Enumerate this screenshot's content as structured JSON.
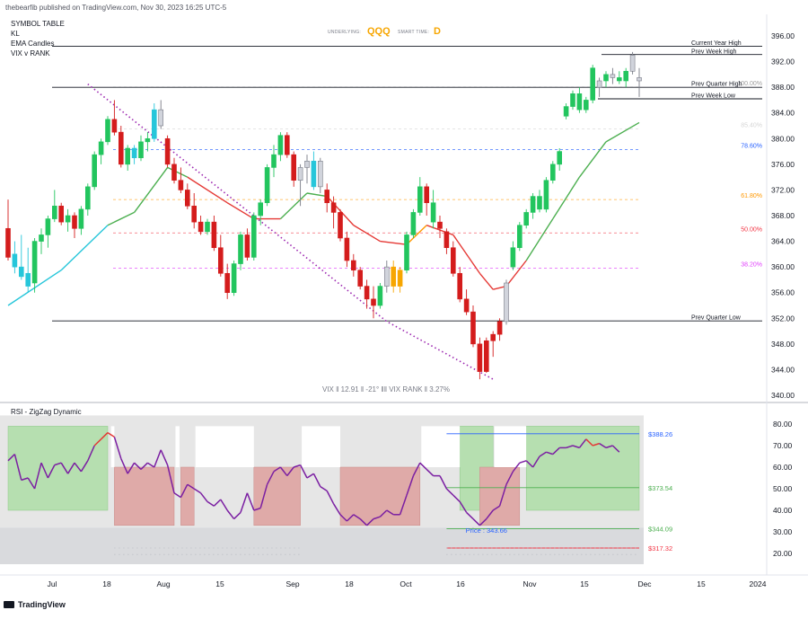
{
  "header": {
    "publisher": "thebearfib published on TradingView.com, Nov 30, 2023 16:25 UTC-5"
  },
  "legend": [
    "SYMBOL TABLE",
    "KL",
    "EMA Candles",
    "VIX v RANK"
  ],
  "center_info": {
    "underlying_label": "UNDERLYING:",
    "underlying_value": "QQQ",
    "smart_label": "SMART TIME:",
    "smart_value": "D"
  },
  "vix_readout": "VIX ‖ 12.91 ‖ -21°    ‖‖    VIX RANK ‖ 3.27%",
  "rsi_title": "RSI - ZigZag Dynamic",
  "brand": "TradingView",
  "colors": {
    "bull": "#22c55e",
    "bear": "#d41c1c",
    "neutral": "#d1d4dc",
    "cyan": "#26c6da",
    "orange": "#f7a600",
    "ema_red": "#e53935",
    "ema_green": "#4caf50",
    "zigzag": "#9c27b0",
    "rsi_line": "#7b1fa2",
    "rsi_ob": "#e53935"
  },
  "chart_data": [
    {
      "type": "candlestick",
      "y_ticks": [
        "396.00",
        "392.00",
        "388.00",
        "384.00",
        "380.00",
        "376.00",
        "372.00",
        "368.00",
        "364.00",
        "360.00",
        "356.00",
        "352.00",
        "348.00",
        "344.00",
        "340.00"
      ],
      "ylim": [
        340,
        397
      ],
      "x_labels": [
        "Jul",
        "18",
        "Aug",
        "15",
        "Sep",
        "18",
        "Oct",
        "16",
        "Nov",
        "15",
        "Dec",
        "15",
        "2024"
      ],
      "level_lines": [
        {
          "label": "Current Year High",
          "value": 394.4
        },
        {
          "label": "Prev Week High",
          "value": 393.1
        },
        {
          "label": "Prev Quarter High",
          "value": 388.0
        },
        {
          "label": "Prev Week Low",
          "value": 386.2
        },
        {
          "label": "Prev Quarter Low",
          "value": 351.6
        }
      ],
      "fib_levels": [
        {
          "label": "100.00%",
          "value": 388.0,
          "color": "#9e9e9e"
        },
        {
          "label": "85.40%",
          "value": 381.5,
          "color": "#d6d6d6"
        },
        {
          "label": "78.60%",
          "value": 378.3,
          "color": "#2962ff"
        },
        {
          "label": "61.80%",
          "value": 370.5,
          "color": "#ff9800"
        },
        {
          "label": "50.00%",
          "value": 365.3,
          "color": "#f23645"
        },
        {
          "label": "38.20%",
          "value": 359.8,
          "color": "#e040fb"
        }
      ],
      "candles": [
        [
          366.0,
          370.5,
          361.0,
          361.5,
          "bear"
        ],
        [
          362.0,
          364.0,
          359.0,
          360.0,
          "cyan"
        ],
        [
          360.0,
          365.0,
          358.0,
          358.5,
          "cyan"
        ],
        [
          359.0,
          363.0,
          356.0,
          357.0,
          "cyan"
        ],
        [
          357.5,
          364.5,
          356.0,
          364.0,
          "bull"
        ],
        [
          364.0,
          366.0,
          362.0,
          365.0,
          "bull"
        ],
        [
          365.0,
          368.0,
          363.0,
          367.5,
          "bull"
        ],
        [
          367.5,
          372.0,
          367.0,
          369.5,
          "bull"
        ],
        [
          369.5,
          370.0,
          366.5,
          367.0,
          "bear"
        ],
        [
          367.0,
          369.0,
          365.5,
          368.0,
          "bull"
        ],
        [
          368.0,
          368.5,
          364.5,
          366.0,
          "bear"
        ],
        [
          366.0,
          369.5,
          365.0,
          369.0,
          "bull"
        ],
        [
          369.0,
          373.0,
          368.0,
          372.5,
          "bull"
        ],
        [
          372.5,
          378.0,
          372.0,
          377.5,
          "bull"
        ],
        [
          377.5,
          380.0,
          376.0,
          379.5,
          "bull"
        ],
        [
          379.5,
          383.5,
          379.0,
          383.0,
          "bull"
        ],
        [
          383.0,
          386.0,
          380.5,
          381.0,
          "bear"
        ],
        [
          381.0,
          382.0,
          375.5,
          376.0,
          "bear"
        ],
        [
          376.0,
          379.0,
          375.0,
          378.5,
          "bull"
        ],
        [
          378.5,
          379.0,
          376.0,
          377.0,
          "cyan"
        ],
        [
          377.0,
          380.5,
          376.5,
          379.5,
          "bull"
        ],
        [
          379.5,
          381.0,
          378.0,
          380.0,
          "bull"
        ],
        [
          380.0,
          385.5,
          379.5,
          384.5,
          "cyan"
        ],
        [
          384.5,
          386.0,
          381.5,
          382.0,
          "neutral"
        ],
        [
          380.0,
          380.5,
          375.5,
          376.0,
          "bear"
        ],
        [
          376.0,
          377.0,
          373.0,
          373.5,
          "bear"
        ],
        [
          373.5,
          375.5,
          371.5,
          372.0,
          "bear"
        ],
        [
          372.0,
          373.0,
          369.0,
          369.5,
          "bear"
        ],
        [
          369.5,
          371.5,
          366.0,
          367.0,
          "bear"
        ],
        [
          367.0,
          368.0,
          365.0,
          365.5,
          "bear"
        ],
        [
          365.5,
          367.5,
          365.0,
          367.0,
          "bull"
        ],
        [
          367.0,
          368.0,
          362.5,
          363.0,
          "bear"
        ],
        [
          363.0,
          365.0,
          358.5,
          359.0,
          "bear"
        ],
        [
          359.0,
          360.5,
          355.0,
          356.0,
          "bear"
        ],
        [
          356.0,
          361.0,
          355.5,
          360.5,
          "bull"
        ],
        [
          360.5,
          365.5,
          359.5,
          365.0,
          "bull"
        ],
        [
          365.0,
          366.0,
          361.0,
          361.5,
          "bear"
        ],
        [
          361.5,
          368.5,
          361.0,
          368.0,
          "bull"
        ],
        [
          368.0,
          370.5,
          366.5,
          370.0,
          "bull"
        ],
        [
          370.0,
          376.0,
          369.5,
          375.5,
          "bull"
        ],
        [
          375.5,
          379.0,
          374.0,
          377.5,
          "bull"
        ],
        [
          377.5,
          381.0,
          376.5,
          380.5,
          "bull"
        ],
        [
          380.5,
          381.0,
          377.0,
          377.5,
          "bear"
        ],
        [
          377.5,
          378.0,
          372.5,
          373.5,
          "bear"
        ],
        [
          373.5,
          376.0,
          369.5,
          375.5,
          "neutral"
        ],
        [
          375.5,
          377.5,
          373.0,
          376.5,
          "neutral"
        ],
        [
          376.5,
          378.0,
          372.0,
          372.5,
          "cyan"
        ],
        [
          372.5,
          377.0,
          371.5,
          376.5,
          "neutral"
        ],
        [
          372.0,
          373.0,
          368.5,
          370.0,
          "bear"
        ],
        [
          370.0,
          371.0,
          366.0,
          368.5,
          "bear"
        ],
        [
          368.5,
          369.0,
          364.0,
          364.5,
          "bear"
        ],
        [
          364.5,
          365.5,
          360.0,
          361.0,
          "bear"
        ],
        [
          361.0,
          362.0,
          358.5,
          359.5,
          "bear"
        ],
        [
          359.5,
          360.0,
          356.5,
          357.0,
          "bear"
        ],
        [
          357.0,
          358.0,
          353.5,
          355.0,
          "bear"
        ],
        [
          355.0,
          357.0,
          352.0,
          354.0,
          "bear"
        ],
        [
          354.0,
          357.5,
          353.5,
          357.0,
          "bull"
        ],
        [
          357.0,
          361.0,
          356.0,
          360.0,
          "neutral"
        ],
        [
          360.0,
          361.0,
          356.0,
          357.0,
          "orange"
        ],
        [
          357.0,
          360.0,
          356.0,
          359.5,
          "orange"
        ],
        [
          359.5,
          365.5,
          359.0,
          365.0,
          "bull"
        ],
        [
          365.0,
          369.0,
          364.5,
          368.5,
          "bull"
        ],
        [
          368.5,
          374.0,
          368.0,
          372.5,
          "bull"
        ],
        [
          372.5,
          373.0,
          368.0,
          370.0,
          "bear"
        ],
        [
          370.0,
          372.0,
          366.0,
          367.0,
          "bull"
        ],
        [
          367.0,
          368.0,
          364.5,
          366.0,
          "bear"
        ],
        [
          365.5,
          366.0,
          362.0,
          363.0,
          "bear"
        ],
        [
          363.0,
          364.0,
          358.5,
          359.0,
          "bear"
        ],
        [
          359.0,
          360.0,
          354.5,
          355.0,
          "bear"
        ],
        [
          355.0,
          356.5,
          352.5,
          353.0,
          "bear"
        ],
        [
          353.0,
          354.0,
          347.5,
          348.0,
          "bear"
        ],
        [
          348.0,
          349.0,
          342.5,
          343.7,
          "bear"
        ],
        [
          343.7,
          349.0,
          343.5,
          348.5,
          "bear"
        ],
        [
          348.5,
          350.0,
          346.0,
          349.5,
          "bear"
        ],
        [
          349.5,
          352.0,
          348.5,
          351.5,
          "bear"
        ],
        [
          351.5,
          358.0,
          351.0,
          357.5,
          "neutral"
        ],
        [
          360.0,
          364.0,
          359.5,
          363.0,
          "bull"
        ],
        [
          363.0,
          367.0,
          362.5,
          366.5,
          "bull"
        ],
        [
          366.5,
          369.0,
          366.0,
          368.5,
          "bull"
        ],
        [
          368.5,
          371.5,
          367.5,
          371.0,
          "bull"
        ],
        [
          371.0,
          372.0,
          368.5,
          369.0,
          "bull"
        ],
        [
          369.0,
          374.0,
          368.5,
          373.5,
          "bull"
        ],
        [
          373.5,
          376.5,
          373.0,
          376.0,
          "bull"
        ],
        [
          376.0,
          378.5,
          375.0,
          378.0,
          "bull"
        ],
        [
          383.5,
          385.5,
          383.0,
          385.0,
          "bull"
        ],
        [
          385.0,
          387.5,
          384.5,
          387.0,
          "bull"
        ],
        [
          387.0,
          388.0,
          384.0,
          384.5,
          "bull"
        ],
        [
          384.5,
          386.5,
          384.0,
          386.0,
          "bull"
        ],
        [
          386.0,
          391.5,
          385.5,
          391.0,
          "bull"
        ],
        [
          388.0,
          389.5,
          386.5,
          389.0,
          "neutral"
        ],
        [
          389.0,
          390.5,
          388.0,
          390.0,
          "bull"
        ],
        [
          390.0,
          391.0,
          388.5,
          389.5,
          "neutral"
        ],
        [
          389.5,
          390.5,
          388.5,
          389.0,
          "bull"
        ],
        [
          389.0,
          391.0,
          388.0,
          390.5,
          "bull"
        ],
        [
          390.5,
          393.5,
          390.0,
          393.0,
          "neutral"
        ],
        [
          389.0,
          391.0,
          386.5,
          389.5,
          "neutral"
        ]
      ],
      "ema": [
        [
          0,
          354.0
        ],
        [
          8,
          359.5
        ],
        [
          15,
          366.5
        ],
        [
          19,
          368.5
        ],
        [
          24,
          375.5
        ],
        [
          27,
          374.0
        ],
        [
          33,
          370.0
        ],
        [
          37,
          367.5
        ],
        [
          41,
          367.5
        ],
        [
          45,
          371.5
        ],
        [
          48,
          371.0
        ],
        [
          52,
          366.5
        ],
        [
          56,
          364.0
        ],
        [
          60,
          363.5
        ],
        [
          63,
          366.5
        ],
        [
          67,
          365.0
        ],
        [
          71,
          359.0
        ],
        [
          73,
          356.5
        ],
        [
          75,
          357.0
        ],
        [
          78,
          361.0
        ],
        [
          82,
          367.5
        ],
        [
          86,
          374.0
        ],
        [
          90,
          379.5
        ],
        [
          95,
          382.5
        ]
      ],
      "zigzag": [
        [
          12,
          388.5
        ],
        [
          57,
          351.5
        ],
        [
          73,
          342.5
        ]
      ]
    },
    {
      "type": "line",
      "title": "RSI - ZigZag Dynamic",
      "y_ticks": [
        "80.00",
        "70.00",
        "60.00",
        "50.00",
        "40.00",
        "30.00",
        "20.00"
      ],
      "ylim": [
        15,
        84
      ],
      "series": [
        {
          "values": [
            63,
            66,
            54,
            55,
            50,
            62,
            55,
            61,
            62,
            57,
            62,
            58,
            63,
            70,
            73,
            76,
            74,
            64,
            57,
            62,
            59,
            62,
            60,
            68,
            61,
            48,
            46,
            52,
            50,
            48,
            44,
            42,
            45,
            40,
            36,
            39,
            48,
            40,
            41,
            52,
            58,
            60,
            56,
            60,
            61,
            55,
            57,
            51,
            49,
            43,
            38,
            35,
            38,
            36,
            33,
            36,
            37,
            40,
            38,
            38,
            47,
            56,
            62,
            59,
            56,
            56,
            50,
            47,
            44,
            39,
            36,
            33,
            36,
            40,
            42,
            52,
            58,
            62,
            63,
            60,
            65,
            67,
            66,
            69,
            69,
            70,
            69,
            73,
            70,
            71,
            69,
            70,
            67
          ]
        }
      ],
      "zones": [
        {
          "type": "overbought",
          "from": 0,
          "to": 15
        },
        {
          "type": "overbought",
          "from": 68,
          "to": 73
        },
        {
          "type": "overbought",
          "from": 78,
          "to": 95
        },
        {
          "type": "oversold",
          "from": 16,
          "to": 25
        },
        {
          "type": "oversold",
          "from": 26,
          "to": 28
        },
        {
          "type": "oversold",
          "from": 37,
          "to": 44
        },
        {
          "type": "oversold",
          "from": 50,
          "to": 62
        },
        {
          "type": "oversold",
          "from": 71,
          "to": 77
        }
      ],
      "price_levels": [
        {
          "label": "$388.26",
          "value": 75.5,
          "color": "#2962ff"
        },
        {
          "label": "$373.54",
          "value": 50.5,
          "color": "#4caf50"
        },
        {
          "label": "$344.09",
          "value": 31.5,
          "color": "#4caf50"
        },
        {
          "label": "$317.32",
          "value": 22.5,
          "color": "#f23645"
        }
      ],
      "price_annotation": "Price : 343.66"
    }
  ]
}
